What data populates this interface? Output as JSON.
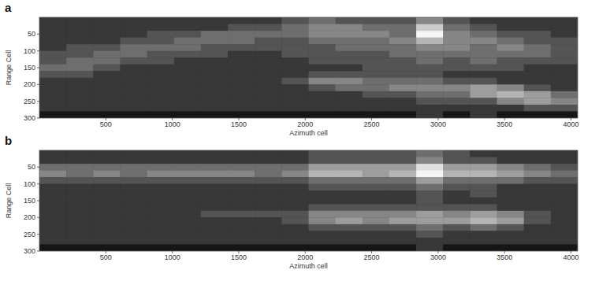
{
  "chart_data": [
    {
      "type": "heatmap",
      "title": "a",
      "xlabel": "Azimuth cell",
      "ylabel": "Range Cell",
      "xlim": [
        0,
        4050
      ],
      "ylim": [
        300,
        0
      ],
      "zlim": [
        0,
        9
      ],
      "xticks": [
        500,
        1000,
        1500,
        2000,
        2500,
        3000,
        3500,
        4000
      ],
      "yticks": [
        50,
        100,
        150,
        200,
        250,
        300
      ],
      "cells": [
        [
          1,
          1,
          1,
          1,
          1,
          1,
          1,
          1,
          1,
          2,
          3,
          2,
          2,
          2,
          4,
          2,
          1,
          1,
          1,
          1
        ],
        [
          1,
          1,
          1,
          1,
          1,
          1,
          1,
          2,
          2,
          3,
          4,
          4,
          3,
          3,
          7,
          3,
          2,
          1,
          1,
          1
        ],
        [
          1,
          1,
          1,
          1,
          2,
          2,
          3,
          3,
          3,
          3,
          4,
          4,
          4,
          3,
          9,
          4,
          3,
          2,
          2,
          1
        ],
        [
          1,
          1,
          1,
          2,
          2,
          3,
          3,
          3,
          2,
          2,
          3,
          3,
          3,
          4,
          6,
          4,
          4,
          3,
          2,
          2
        ],
        [
          1,
          2,
          2,
          3,
          3,
          3,
          2,
          2,
          2,
          2,
          2,
          3,
          3,
          3,
          4,
          4,
          3,
          4,
          3,
          2
        ],
        [
          2,
          2,
          3,
          3,
          2,
          2,
          2,
          1,
          1,
          2,
          2,
          2,
          2,
          3,
          3,
          3,
          3,
          3,
          3,
          2
        ],
        [
          2,
          3,
          3,
          2,
          2,
          1,
          1,
          1,
          1,
          1,
          2,
          2,
          2,
          2,
          3,
          2,
          3,
          2,
          2,
          2
        ],
        [
          3,
          3,
          2,
          1,
          1,
          1,
          1,
          1,
          1,
          1,
          1,
          1,
          2,
          2,
          2,
          2,
          2,
          2,
          1,
          1
        ],
        [
          2,
          2,
          1,
          1,
          1,
          1,
          1,
          1,
          1,
          1,
          2,
          2,
          2,
          2,
          2,
          1,
          1,
          1,
          1,
          1
        ],
        [
          1,
          1,
          1,
          1,
          1,
          1,
          1,
          1,
          1,
          2,
          4,
          4,
          3,
          3,
          3,
          2,
          2,
          1,
          1,
          1
        ],
        [
          1,
          1,
          1,
          1,
          1,
          1,
          1,
          1,
          1,
          1,
          2,
          3,
          3,
          4,
          4,
          4,
          5,
          4,
          2,
          1
        ],
        [
          1,
          1,
          1,
          1,
          1,
          1,
          1,
          1,
          1,
          1,
          1,
          1,
          2,
          2,
          3,
          3,
          5,
          6,
          5,
          3
        ],
        [
          1,
          1,
          1,
          1,
          1,
          1,
          1,
          1,
          1,
          1,
          1,
          1,
          1,
          1,
          2,
          2,
          2,
          4,
          5,
          4
        ],
        [
          1,
          1,
          1,
          1,
          1,
          1,
          1,
          1,
          1,
          1,
          1,
          1,
          1,
          1,
          1,
          1,
          1,
          1,
          2,
          2
        ],
        [
          0,
          0,
          0,
          0,
          0,
          0,
          0,
          0,
          0,
          0,
          0,
          0,
          0,
          0,
          1,
          0,
          1,
          0,
          0,
          0
        ]
      ]
    },
    {
      "type": "heatmap",
      "title": "b",
      "xlabel": "Azimuth cell",
      "ylabel": "Range Cell",
      "xlim": [
        0,
        4050
      ],
      "ylim": [
        300,
        0
      ],
      "zlim": [
        0,
        9
      ],
      "xticks": [
        500,
        1000,
        1500,
        2000,
        2500,
        3000,
        3500,
        4000
      ],
      "yticks": [
        50,
        100,
        150,
        200,
        250,
        300
      ],
      "cells": [
        [
          1,
          1,
          1,
          1,
          1,
          1,
          1,
          1,
          1,
          1,
          2,
          2,
          2,
          2,
          3,
          2,
          1,
          1,
          1,
          1
        ],
        [
          1,
          1,
          1,
          1,
          1,
          1,
          1,
          1,
          1,
          1,
          2,
          2,
          2,
          2,
          4,
          2,
          2,
          1,
          1,
          1
        ],
        [
          3,
          3,
          3,
          3,
          3,
          3,
          3,
          3,
          3,
          3,
          5,
          5,
          5,
          5,
          8,
          5,
          5,
          4,
          3,
          2
        ],
        [
          4,
          3,
          4,
          3,
          4,
          4,
          4,
          4,
          3,
          4,
          6,
          6,
          5,
          6,
          9,
          6,
          6,
          5,
          4,
          3
        ],
        [
          2,
          2,
          2,
          2,
          2,
          2,
          2,
          2,
          2,
          2,
          3,
          3,
          3,
          3,
          5,
          3,
          3,
          3,
          2,
          2
        ],
        [
          1,
          1,
          1,
          1,
          1,
          1,
          1,
          1,
          1,
          1,
          2,
          2,
          2,
          2,
          3,
          2,
          2,
          1,
          1,
          1
        ],
        [
          1,
          1,
          1,
          1,
          1,
          1,
          1,
          1,
          1,
          1,
          1,
          1,
          1,
          1,
          2,
          1,
          2,
          1,
          1,
          1
        ],
        [
          1,
          1,
          1,
          1,
          1,
          1,
          1,
          1,
          1,
          1,
          1,
          1,
          1,
          1,
          2,
          1,
          1,
          1,
          1,
          1
        ],
        [
          1,
          1,
          1,
          1,
          1,
          1,
          1,
          1,
          1,
          1,
          2,
          2,
          2,
          2,
          2,
          2,
          2,
          1,
          1,
          1
        ],
        [
          1,
          1,
          1,
          1,
          1,
          1,
          2,
          2,
          2,
          2,
          4,
          4,
          4,
          4,
          5,
          4,
          5,
          4,
          2,
          1
        ],
        [
          1,
          1,
          1,
          1,
          1,
          1,
          1,
          1,
          1,
          2,
          4,
          5,
          4,
          5,
          5,
          5,
          6,
          5,
          2,
          1
        ],
        [
          1,
          1,
          1,
          1,
          1,
          1,
          1,
          1,
          1,
          1,
          2,
          2,
          2,
          2,
          3,
          2,
          3,
          2,
          1,
          1
        ],
        [
          1,
          1,
          1,
          1,
          1,
          1,
          1,
          1,
          1,
          1,
          1,
          1,
          1,
          1,
          2,
          1,
          1,
          1,
          1,
          1
        ],
        [
          1,
          1,
          1,
          1,
          1,
          1,
          1,
          1,
          1,
          1,
          1,
          1,
          1,
          1,
          1,
          1,
          1,
          1,
          1,
          1
        ],
        [
          0,
          0,
          0,
          0,
          0,
          0,
          0,
          0,
          0,
          0,
          0,
          0,
          0,
          0,
          1,
          0,
          0,
          0,
          0,
          0
        ]
      ]
    }
  ]
}
